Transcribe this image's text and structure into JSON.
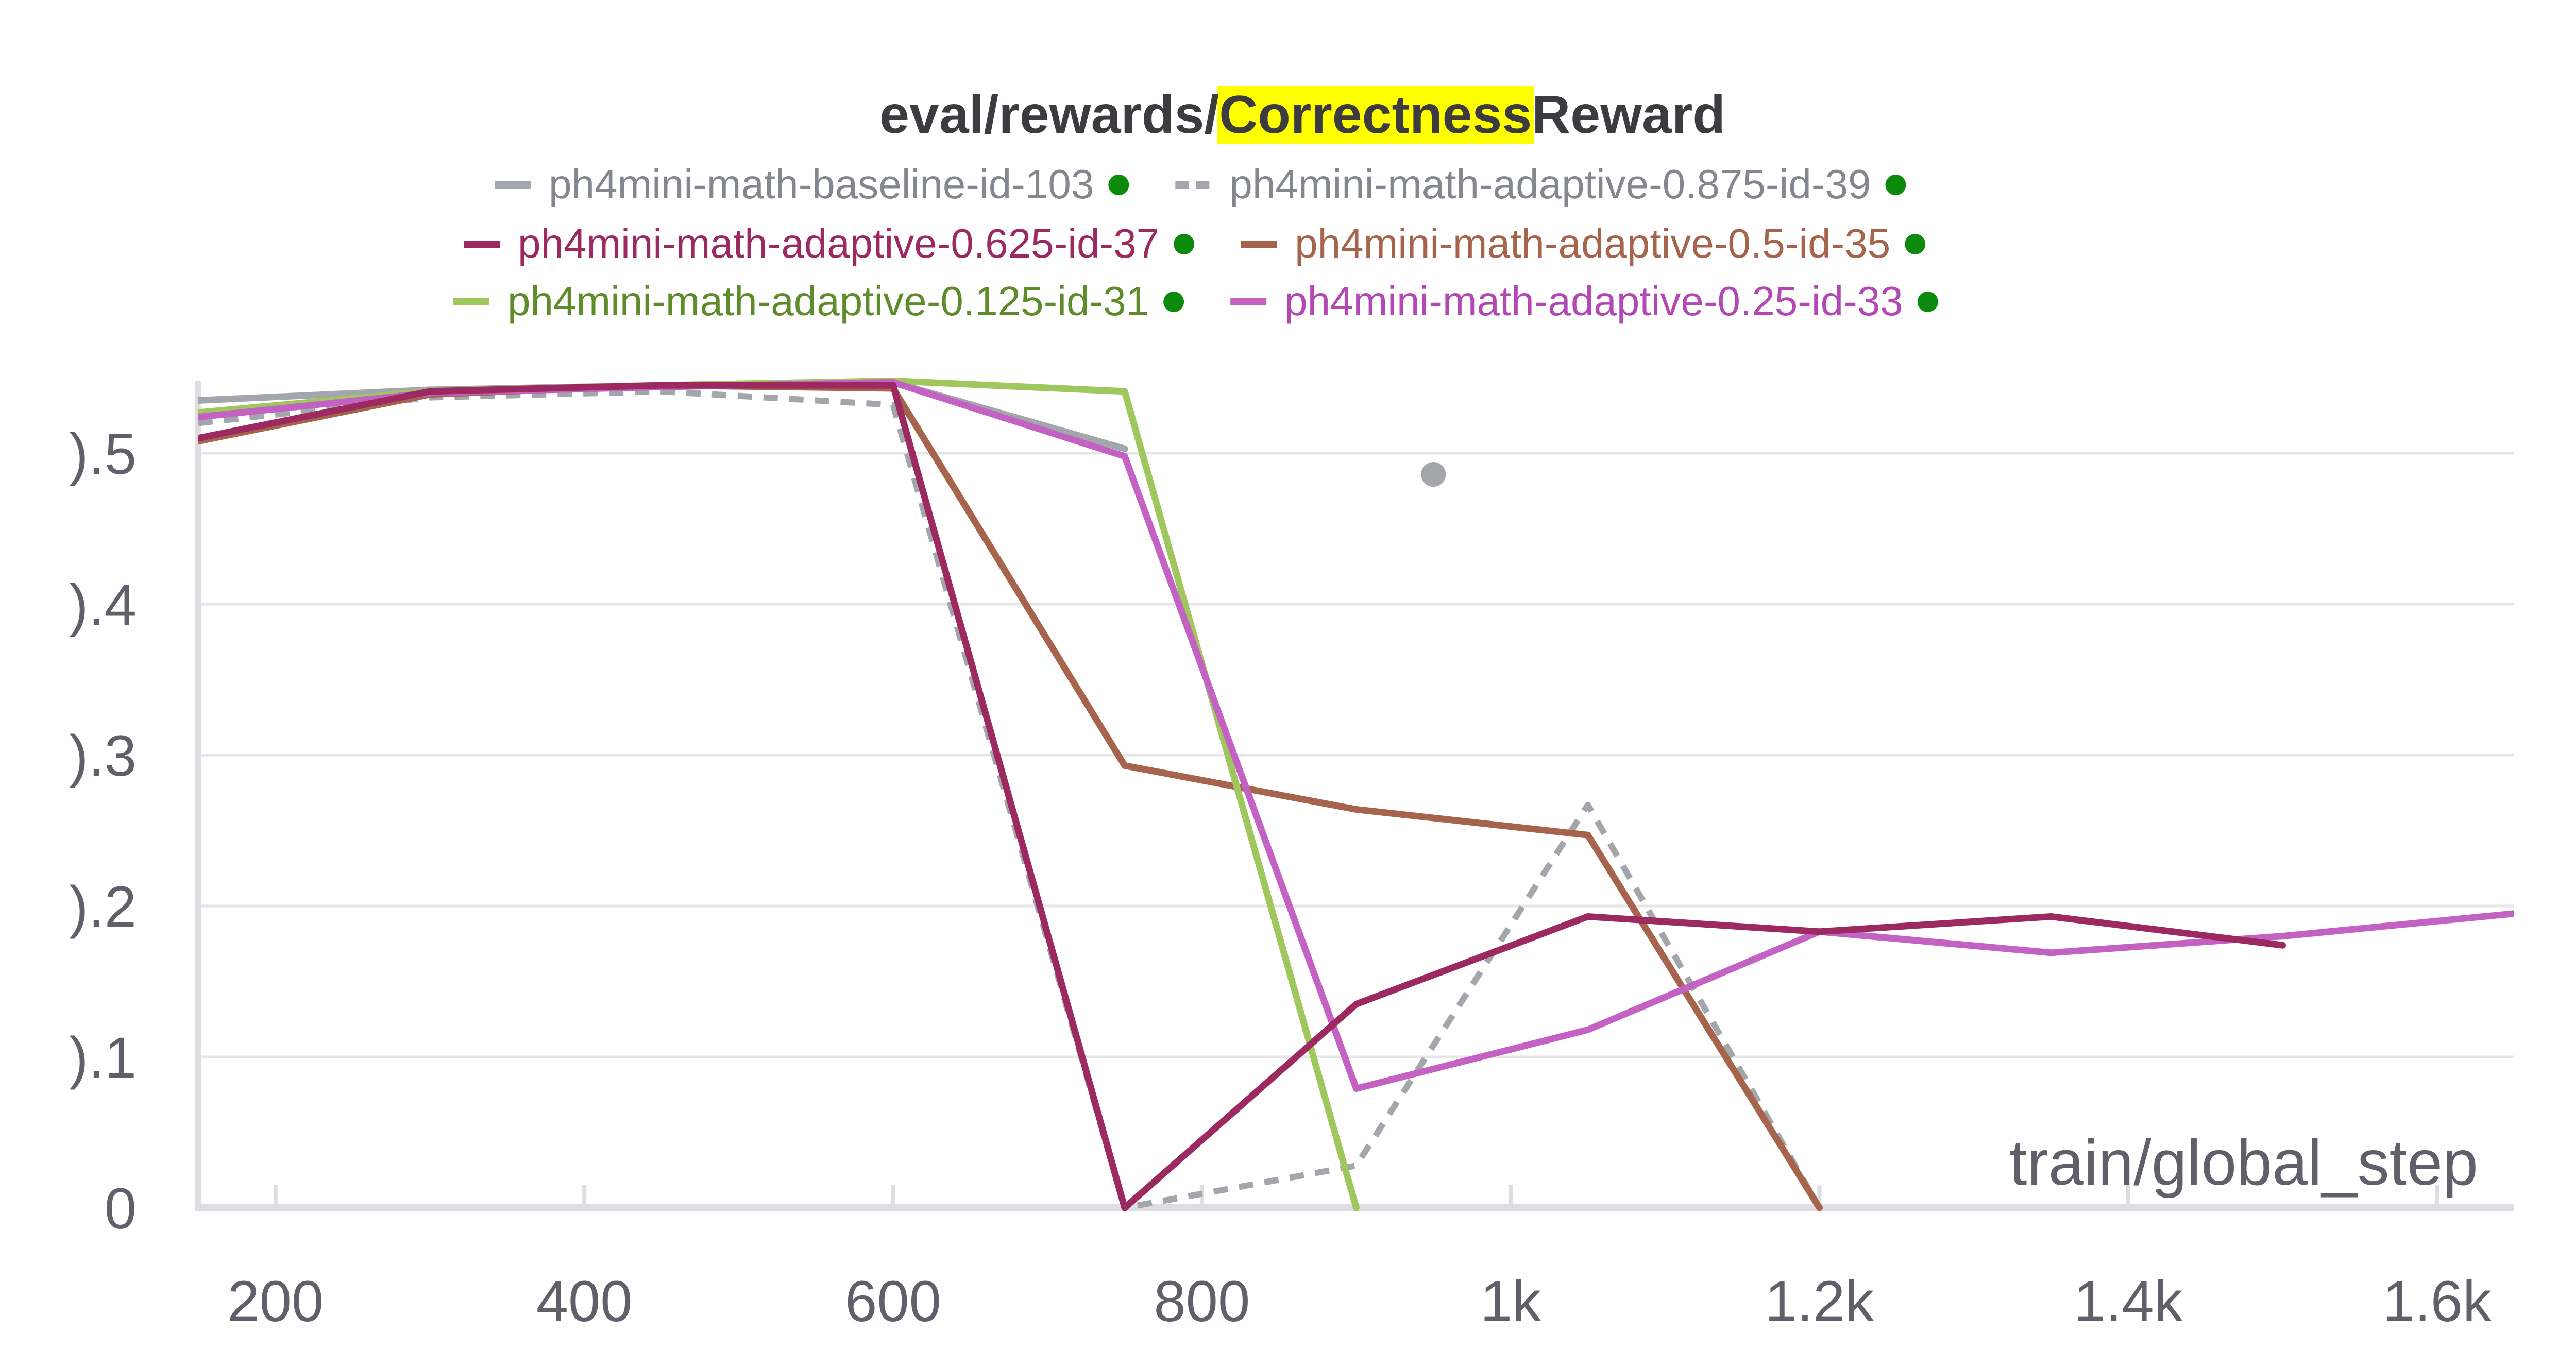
{
  "chart_data": {
    "type": "line",
    "title": {
      "prefix": "eval/rewards/",
      "highlight": "Correctness",
      "suffix": "Reward",
      "highlight_color": "#ffff00"
    },
    "xlabel": "train/global_step",
    "xlim": [
      150,
      1650
    ],
    "ylim": [
      0,
      0.55
    ],
    "x_ticks": [
      {
        "value": 200,
        "label": "200"
      },
      {
        "value": 400,
        "label": "400"
      },
      {
        "value": 600,
        "label": "600"
      },
      {
        "value": 800,
        "label": "800"
      },
      {
        "value": 1000,
        "label": "1k"
      },
      {
        "value": 1200,
        "label": "1.2k"
      },
      {
        "value": 1400,
        "label": "1.4k"
      },
      {
        "value": 1600,
        "label": "1.6k"
      }
    ],
    "y_ticks": [
      {
        "value": 0,
        "label": "0"
      },
      {
        "value": 0.1,
        "label": ").1"
      },
      {
        "value": 0.2,
        "label": ").2"
      },
      {
        "value": 0.3,
        "label": ").3"
      },
      {
        "value": 0.4,
        "label": ").4"
      },
      {
        "value": 0.5,
        "label": ").5"
      }
    ],
    "grid": true,
    "legend_position": "top",
    "series": [
      {
        "name": "ph4mini-math-baseline-id-103",
        "color": "#a3a6ab",
        "dash": false,
        "points": [
          [
            150,
            0.535
          ],
          [
            300,
            0.542
          ],
          [
            450,
            0.545
          ],
          [
            600,
            0.547
          ],
          [
            750,
            0.503
          ]
        ]
      },
      {
        "name": "ph4mini-math-adaptive-0.875-id-39",
        "color": "#a3a6ab",
        "dash": true,
        "points": [
          [
            150,
            0.52
          ],
          [
            300,
            0.537
          ],
          [
            450,
            0.541
          ],
          [
            600,
            0.532
          ],
          [
            750,
            0.0
          ],
          [
            900,
            0.028
          ],
          [
            1050,
            0.267
          ],
          [
            1200,
            0.0
          ]
        ]
      },
      {
        "name": "ph4mini-math-adaptive-0.625-id-37",
        "color": "#9c2a61",
        "dash": false,
        "points": [
          [
            150,
            0.51
          ],
          [
            300,
            0.541
          ],
          [
            450,
            0.545
          ],
          [
            600,
            0.545
          ],
          [
            750,
            0.0
          ],
          [
            900,
            0.135
          ],
          [
            1050,
            0.193
          ],
          [
            1200,
            0.183
          ],
          [
            1350,
            0.193
          ],
          [
            1500,
            0.174
          ]
        ]
      },
      {
        "name": "ph4mini-math-adaptive-0.5-id-35",
        "color": "#a5644b",
        "dash": false,
        "points": [
          [
            150,
            0.508
          ],
          [
            300,
            0.539
          ],
          [
            450,
            0.545
          ],
          [
            600,
            0.543
          ],
          [
            750,
            0.293
          ],
          [
            900,
            0.264
          ],
          [
            1050,
            0.247
          ],
          [
            1200,
            0.0
          ]
        ]
      },
      {
        "name": "ph4mini-math-adaptive-0.125-id-31",
        "color": "#a0c65e",
        "dash": false,
        "points": [
          [
            150,
            0.527
          ],
          [
            300,
            0.541
          ],
          [
            450,
            0.545
          ],
          [
            600,
            0.548
          ],
          [
            750,
            0.541
          ],
          [
            900,
            0.0
          ]
        ]
      },
      {
        "name": "ph4mini-math-adaptive-0.25-id-33",
        "color": "#c462c4",
        "dash": false,
        "points": [
          [
            150,
            0.524
          ],
          [
            300,
            0.54
          ],
          [
            450,
            0.544
          ],
          [
            600,
            0.547
          ],
          [
            750,
            0.498
          ],
          [
            900,
            0.079
          ],
          [
            1050,
            0.118
          ],
          [
            1200,
            0.183
          ],
          [
            1350,
            0.169
          ],
          [
            1500,
            0.18
          ],
          [
            1650,
            0.195
          ]
        ]
      }
    ],
    "markers": [
      {
        "x": 950,
        "y": 0.486,
        "color": "#a3a6ab"
      }
    ],
    "legend_text_colors": [
      "#84878d",
      "#84878d",
      "#9c2a61",
      "#a5644b",
      "#5f8c2a",
      "#b347b3"
    ],
    "status_dot_color": "#0b8a0b"
  }
}
